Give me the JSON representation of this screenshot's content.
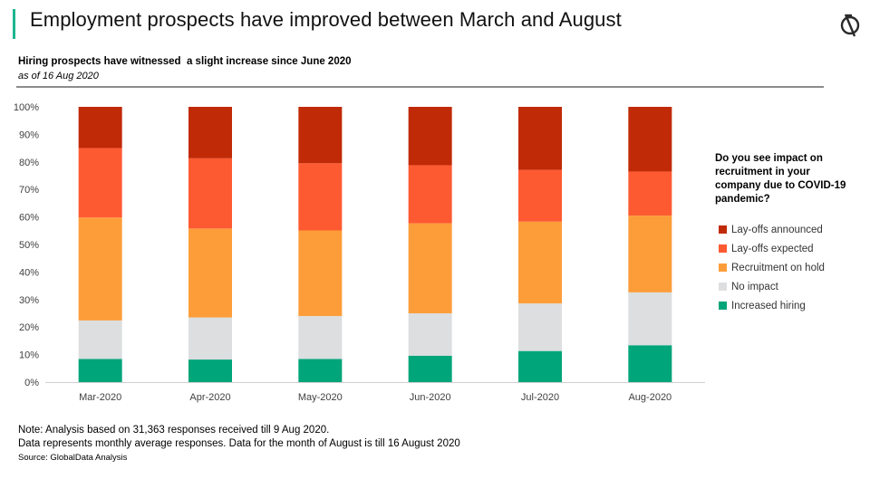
{
  "header": {
    "title": "Employment prospects have improved between March and August",
    "accent_color": "#1fb58f"
  },
  "logo": {
    "icon": "globaldata-logo-icon"
  },
  "chart_data": {
    "type": "bar",
    "stacked": true,
    "title": "Hiring prospects have witnessed  a slight increase since June 2020",
    "subtitle": "as of 16 Aug 2020",
    "xlabel": "",
    "ylabel": "",
    "ylim": [
      0,
      100
    ],
    "y_ticks": [
      "0%",
      "10%",
      "20%",
      "30%",
      "40%",
      "50%",
      "60%",
      "70%",
      "80%",
      "90%",
      "100%"
    ],
    "categories": [
      "Mar-2020",
      "Apr-2020",
      "May-2020",
      "Jun-2020",
      "Jul-2020",
      "Aug-2020"
    ],
    "series": [
      {
        "name": "Increased hiring",
        "color": "#00a57a",
        "values": [
          8.4,
          8.2,
          8.4,
          9.6,
          11.3,
          13.4
        ]
      },
      {
        "name": "No impact",
        "color": "#dcdedf",
        "values": [
          14.0,
          15.3,
          15.6,
          15.4,
          17.3,
          19.2
        ]
      },
      {
        "name": "Recruitment on hold",
        "color": "#fd9d3a",
        "values": [
          37.4,
          32.3,
          31.1,
          32.7,
          29.7,
          27.9
        ]
      },
      {
        "name": "Lay-offs expected",
        "color": "#fe5a32",
        "values": [
          25.2,
          25.5,
          24.4,
          21.1,
          18.8,
          16.0
        ]
      },
      {
        "name": "Lay-offs announced",
        "color": "#c02a07",
        "values": [
          15.0,
          18.7,
          20.5,
          21.2,
          22.9,
          23.5
        ]
      }
    ],
    "legend": {
      "title": "Do you see impact on recruitment in your company due to COVID-19 pandemic?",
      "placement": "right",
      "order": [
        "Lay-offs announced",
        "Lay-offs expected",
        "Recruitment on hold",
        "No impact",
        "Increased hiring"
      ]
    },
    "grid": false
  },
  "notes": {
    "line1": "Note: Analysis based on 31,363 responses received till 9 Aug 2020.",
    "line2": "Data represents monthly average responses. Data for the month of August is till 16 August 2020",
    "source": "Source: GlobalData Analysis"
  }
}
